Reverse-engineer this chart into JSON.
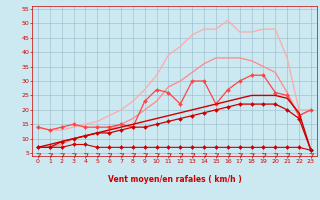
{
  "xlabel": "Vent moyen/en rafales ( km/h )",
  "bg_color": "#cce8f0",
  "grid_color": "#99bbcc",
  "xlim": [
    -0.5,
    23.5
  ],
  "ylim": [
    4,
    56
  ],
  "yticks": [
    5,
    10,
    15,
    20,
    25,
    30,
    35,
    40,
    45,
    50,
    55
  ],
  "xticks": [
    0,
    1,
    2,
    3,
    4,
    5,
    6,
    7,
    8,
    9,
    10,
    11,
    12,
    13,
    14,
    15,
    16,
    17,
    18,
    19,
    20,
    21,
    22,
    23
  ],
  "series": [
    {
      "name": "light_pink_top",
      "color": "#ffaaaa",
      "linewidth": 0.9,
      "marker": null,
      "x": [
        0,
        1,
        2,
        3,
        4,
        5,
        6,
        7,
        8,
        9,
        10,
        11,
        12,
        13,
        14,
        15,
        16,
        17,
        18,
        19,
        20,
        21,
        22,
        23
      ],
      "y": [
        14,
        13,
        13,
        14,
        15,
        16,
        18,
        20,
        23,
        27,
        32,
        39,
        42,
        46,
        48,
        48,
        51,
        47,
        47,
        48,
        48,
        38,
        20,
        20
      ]
    },
    {
      "name": "medium_pink",
      "color": "#ff8888",
      "linewidth": 0.9,
      "marker": null,
      "x": [
        0,
        1,
        2,
        3,
        4,
        5,
        6,
        7,
        8,
        9,
        10,
        11,
        12,
        13,
        14,
        15,
        16,
        17,
        18,
        19,
        20,
        21,
        22,
        23
      ],
      "y": [
        7,
        7,
        8,
        10,
        11,
        12,
        13,
        15,
        17,
        20,
        23,
        28,
        30,
        33,
        36,
        38,
        38,
        38,
        37,
        35,
        33,
        26,
        18,
        20
      ]
    },
    {
      "name": "medium_red_markers",
      "color": "#ff4444",
      "linewidth": 0.9,
      "marker": "D",
      "markersize": 2.0,
      "x": [
        0,
        1,
        2,
        3,
        4,
        5,
        6,
        7,
        8,
        9,
        10,
        11,
        12,
        13,
        14,
        15,
        16,
        17,
        18,
        19,
        20,
        21,
        22,
        23
      ],
      "y": [
        14,
        13,
        14,
        15,
        14,
        14,
        14,
        15,
        14,
        23,
        27,
        26,
        22,
        30,
        30,
        22,
        27,
        30,
        32,
        32,
        26,
        25,
        18,
        20
      ]
    },
    {
      "name": "dark_red_rising_no_marker",
      "color": "#cc0000",
      "linewidth": 1.0,
      "marker": null,
      "x": [
        0,
        1,
        2,
        3,
        4,
        5,
        6,
        7,
        8,
        9,
        10,
        11,
        12,
        13,
        14,
        15,
        16,
        17,
        18,
        19,
        20,
        21,
        22,
        23
      ],
      "y": [
        7,
        8,
        9,
        10,
        11,
        12,
        13,
        14,
        15,
        16,
        17,
        18,
        19,
        20,
        21,
        22,
        23,
        24,
        25,
        25,
        25,
        24,
        19,
        6
      ]
    },
    {
      "name": "dark_red_flat_markers",
      "color": "#cc0000",
      "linewidth": 0.8,
      "marker": "D",
      "markersize": 2.0,
      "x": [
        0,
        1,
        2,
        3,
        4,
        5,
        6,
        7,
        8,
        9,
        10,
        11,
        12,
        13,
        14,
        15,
        16,
        17,
        18,
        19,
        20,
        21,
        22,
        23
      ],
      "y": [
        7,
        7,
        7,
        8,
        8,
        7,
        7,
        7,
        7,
        7,
        7,
        7,
        7,
        7,
        7,
        7,
        7,
        7,
        7,
        7,
        7,
        7,
        7,
        6
      ]
    },
    {
      "name": "dark_red_mid_markers",
      "color": "#cc0000",
      "linewidth": 0.9,
      "marker": "D",
      "markersize": 2.0,
      "x": [
        0,
        1,
        2,
        3,
        4,
        5,
        6,
        7,
        8,
        9,
        10,
        11,
        12,
        13,
        14,
        15,
        16,
        17,
        18,
        19,
        20,
        21,
        22,
        23
      ],
      "y": [
        7,
        7,
        9,
        10,
        11,
        12,
        12,
        13,
        14,
        14,
        15,
        16,
        17,
        18,
        19,
        20,
        21,
        22,
        22,
        22,
        22,
        20,
        17,
        6
      ]
    }
  ],
  "arrow_color": "#cc0000",
  "tick_color": "#cc0000",
  "tick_fontsize": 4.5,
  "xlabel_fontsize": 5.5,
  "xlabel_color": "#cc0000"
}
